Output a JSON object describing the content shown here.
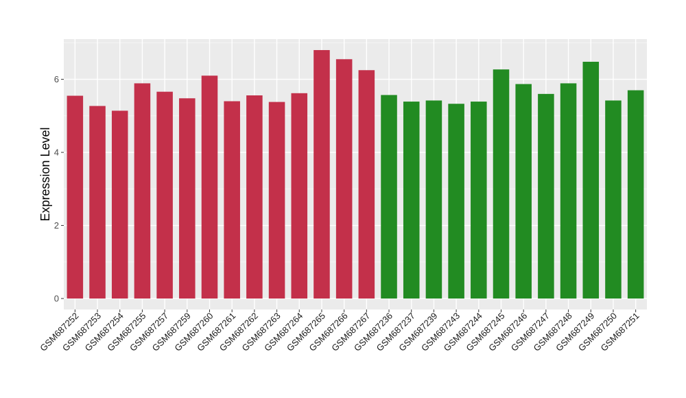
{
  "chart_data": {
    "type": "bar",
    "title": "",
    "xlabel": "",
    "ylabel": "Expression Level",
    "ylim": [
      -0.3,
      7.1
    ],
    "yticks": [
      0,
      2,
      4,
      6
    ],
    "grid": true,
    "colors": {
      "panel_background": "#ebebeb",
      "grid_major": "#ffffff",
      "grid_minor": "#f5f5f5",
      "group_1": "#c3304a",
      "group_2": "#228b22"
    },
    "categories": [
      "GSM687252",
      "GSM687253",
      "GSM687254",
      "GSM687255",
      "GSM687257",
      "GSM687259",
      "GSM687260",
      "GSM687261",
      "GSM687262",
      "GSM687263",
      "GSM687264",
      "GSM687265",
      "GSM687266",
      "GSM687267",
      "GSM687236",
      "GSM687237",
      "GSM687239",
      "GSM687243",
      "GSM687244",
      "GSM687245",
      "GSM687246",
      "GSM687247",
      "GSM687248",
      "GSM687249",
      "GSM687250",
      "GSM687251"
    ],
    "values": [
      5.55,
      5.27,
      5.14,
      5.89,
      5.66,
      5.48,
      6.1,
      5.4,
      5.56,
      5.38,
      5.62,
      6.8,
      6.55,
      6.25,
      5.57,
      5.39,
      5.42,
      5.33,
      5.39,
      6.27,
      5.87,
      5.6,
      5.89,
      6.48,
      5.42,
      5.7
    ],
    "groups": [
      1,
      1,
      1,
      1,
      1,
      1,
      1,
      1,
      1,
      1,
      1,
      1,
      1,
      1,
      2,
      2,
      2,
      2,
      2,
      2,
      2,
      2,
      2,
      2,
      2,
      2
    ]
  }
}
